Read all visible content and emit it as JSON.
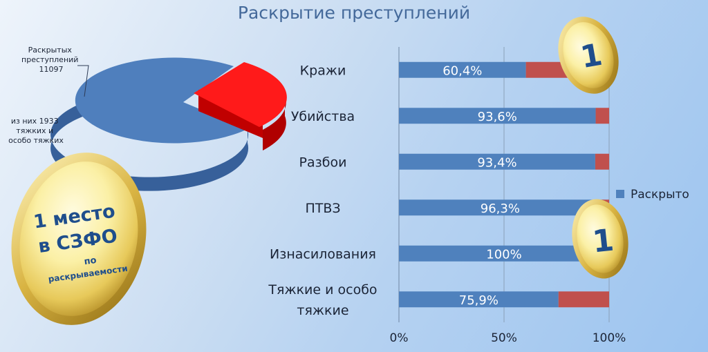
{
  "title": "Раскрытие преступлений",
  "pie": {
    "label_solved": [
      "Раскрытых",
      "преступлений",
      "11097"
    ],
    "label_grave": [
      "из них 1933",
      "тяжких и",
      "особо тяжких"
    ],
    "solved_count": 11097,
    "grave_count": 1933,
    "colors": {
      "main": "#4f7fbd",
      "main_side": "#37609a",
      "slice": "#ff1a1a",
      "slice_side": "#c00000"
    }
  },
  "medal": {
    "line1": "1 место",
    "line2": "в СЗФО",
    "line3": "по",
    "line4": "раскрываемости"
  },
  "coins": [
    {
      "text": "1"
    },
    {
      "text": "1"
    }
  ],
  "chart_data": {
    "type": "bar",
    "orientation": "horizontal",
    "stacked": true,
    "categories": [
      [
        "Кражи"
      ],
      [
        "Убийства"
      ],
      [
        "Разбои"
      ],
      [
        "ПТВЗ"
      ],
      [
        "Изнасилования"
      ],
      [
        "Тяжкие и особо",
        "тяжкие"
      ]
    ],
    "series": [
      {
        "name": "Раскрыто",
        "color": "#4f81bd",
        "values": [
          60.4,
          93.6,
          93.4,
          96.3,
          100,
          75.9
        ],
        "labels": [
          "60,4%",
          "93,6%",
          "93,4%",
          "96,3%",
          "100%",
          "75,9%"
        ]
      },
      {
        "color": "#c0504d",
        "values": [
          39.6,
          6.4,
          6.6,
          3.7,
          0,
          24.1
        ]
      }
    ],
    "xlim": [
      0,
      100
    ],
    "ticks": [
      0,
      50,
      100
    ],
    "tick_labels": [
      "0%",
      "50%",
      "100%"
    ],
    "grid": true,
    "legend": "right"
  }
}
